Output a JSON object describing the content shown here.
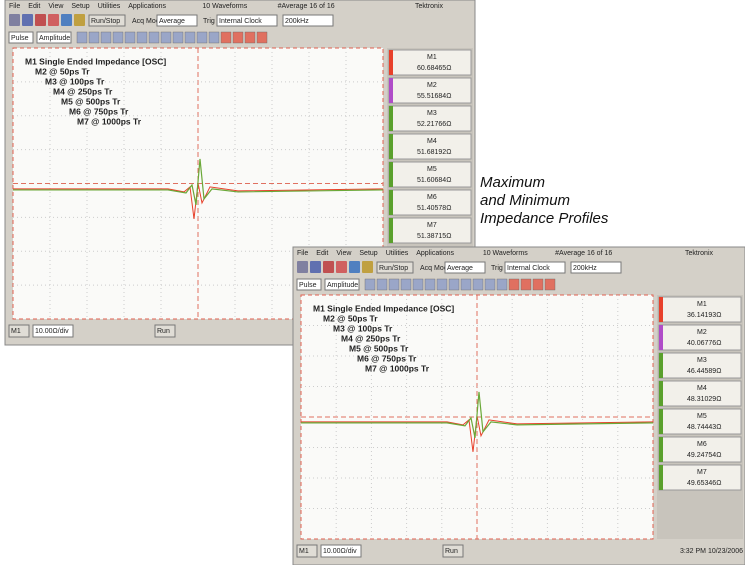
{
  "caption": [
    "Maximum",
    "and Minimum",
    "Impedance Profiles"
  ],
  "windows": [
    {
      "menu": [
        "File",
        "Edit",
        "View",
        "Setup",
        "Utilities",
        "Applications"
      ],
      "status": [
        "10 Waveforms",
        "#Average 16 of 16",
        "Tektronix"
      ],
      "toolbar": [
        "Run/Stop",
        "Acq Mode",
        "Average",
        "Trig",
        "Internal Clock",
        "200kHz"
      ],
      "toolbar2": [
        "Pulse",
        "Amplitude"
      ],
      "traces": [
        {
          "label": "M1 Single Ended Impedance [OSC]",
          "color": "#e8402a"
        },
        {
          "label": "M2 @ 50ps Tr",
          "color": "#b04cc8"
        },
        {
          "label": "M3 @ 100ps Tr",
          "color": "#5aa02c"
        },
        {
          "label": "M4 @ 250ps Tr",
          "color": "#5aa02c"
        },
        {
          "label": "M5 @ 500ps Tr",
          "color": "#5aa02c"
        },
        {
          "label": "M6 @ 750ps Tr",
          "color": "#5aa02c"
        },
        {
          "label": "M7 @ 1000ps Tr",
          "color": "#5aa02c"
        }
      ],
      "readouts": [
        {
          "name": "M1",
          "value": "60.68465Ω"
        },
        {
          "name": "M2",
          "value": "55.51684Ω"
        },
        {
          "name": "M3",
          "value": "52.21766Ω"
        },
        {
          "name": "M4",
          "value": "51.68192Ω"
        },
        {
          "name": "M5",
          "value": "51.60684Ω"
        },
        {
          "name": "M6",
          "value": "51.40578Ω"
        },
        {
          "name": "M7",
          "value": "51.38715Ω"
        }
      ],
      "footer": [
        "M1",
        "10.00Ω/div",
        "Run"
      ]
    },
    {
      "menu": [
        "File",
        "Edit",
        "View",
        "Setup",
        "Utilities",
        "Applications"
      ],
      "status": [
        "10 Waveforms",
        "#Average 16 of 16",
        "Tektronix"
      ],
      "toolbar": [
        "Run/Stop",
        "Acq Mode",
        "Average",
        "Trig",
        "Internal Clock",
        "200kHz"
      ],
      "toolbar2": [
        "Pulse",
        "Amplitude"
      ],
      "traces": [
        {
          "label": "M1 Single Ended Impedance [OSC]",
          "color": "#e8402a"
        },
        {
          "label": "M2 @ 50ps Tr",
          "color": "#b04cc8"
        },
        {
          "label": "M3 @ 100ps Tr",
          "color": "#5aa02c"
        },
        {
          "label": "M4 @ 250ps Tr",
          "color": "#5aa02c"
        },
        {
          "label": "M5 @ 500ps Tr",
          "color": "#5aa02c"
        },
        {
          "label": "M6 @ 750ps Tr",
          "color": "#5aa02c"
        },
        {
          "label": "M7 @ 1000ps Tr",
          "color": "#5aa02c"
        }
      ],
      "readouts": [
        {
          "name": "M1",
          "value": "36.14193Ω"
        },
        {
          "name": "M2",
          "value": "40.06776Ω"
        },
        {
          "name": "M3",
          "value": "46.44589Ω"
        },
        {
          "name": "M4",
          "value": "48.31029Ω"
        },
        {
          "name": "M5",
          "value": "48.74443Ω"
        },
        {
          "name": "M6",
          "value": "49.24754Ω"
        },
        {
          "name": "M7",
          "value": "49.65346Ω"
        }
      ],
      "footer": [
        "M1",
        "10.00Ω/div",
        "Run"
      ],
      "clock": "3:32 PM 10/23/2006"
    }
  ]
}
